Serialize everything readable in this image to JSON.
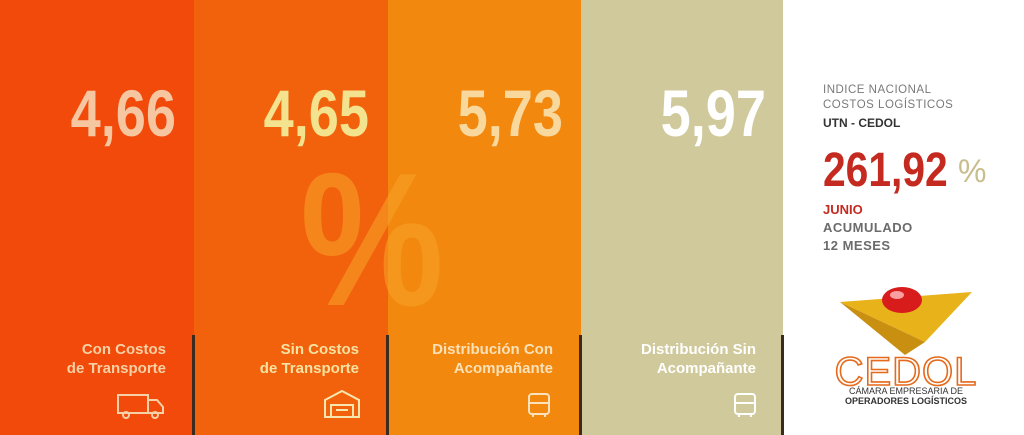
{
  "panels": [
    {
      "value": "4,66",
      "label_lines": [
        "Con Costos",
        "de Transporte"
      ]
    },
    {
      "value": "4,65",
      "label_lines": [
        "Sin Costos",
        "de Transporte"
      ]
    },
    {
      "value": "5,73",
      "label_lines": [
        "Distribución Con",
        "Acompañante"
      ]
    },
    {
      "value": "5,97",
      "label_lines": [
        "Distribución Sin",
        "Acompañante"
      ]
    }
  ],
  "percent_symbol": "%",
  "index": {
    "title_lines": [
      "INDICE NACIONAL",
      "COSTOS LOGÍSTICOS"
    ],
    "source": "UTN - CEDOL",
    "value": "261,92",
    "unit": "%",
    "month": "JUNIO",
    "period_lines": [
      "ACUMULADO",
      "12 MESES"
    ]
  },
  "logo": {
    "name": "CEDOL",
    "subtitle_lines": [
      "CÁMARA EMPRESARIA DE",
      "OPERADORES LOGÍSTICOS"
    ]
  }
}
